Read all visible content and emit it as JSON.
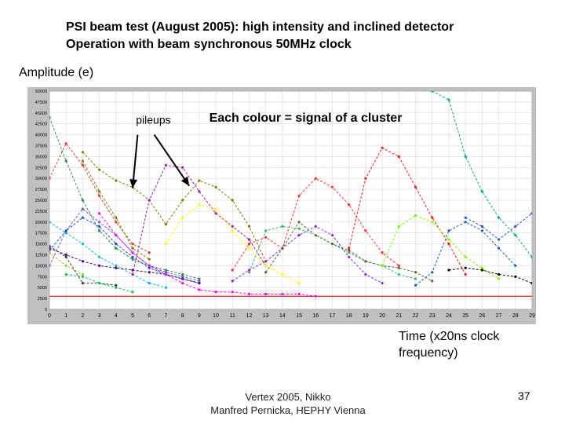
{
  "slide": {
    "title_line1": "PSI beam test (August 2005): high intensity and inclined detector",
    "title_line2": "Operation with beam synchronous 50MHz clock",
    "footer_line1": "Vertex 2005, Nikko",
    "footer_line2": "Manfred Pernicka, HEPHY Vienna",
    "page_number": "37"
  },
  "chart_data": {
    "type": "line",
    "title": "",
    "ylabel": "Amplitude (e)",
    "xlabel_line1": "Time (x20ns clock",
    "xlabel_line2": "frequency)",
    "ylim": [
      0,
      50000
    ],
    "xlim": [
      0,
      29
    ],
    "y_ticks": [
      "0",
      "2500",
      "5000",
      "7500",
      "10000",
      "12500",
      "15000",
      "17500",
      "20000",
      "22500",
      "25000",
      "27500",
      "30000",
      "32500",
      "35000",
      "37500",
      "40000",
      "42500",
      "45000",
      "47500",
      "50000"
    ],
    "x_ticks": [
      "0",
      "1",
      "2",
      "3",
      "4",
      "5",
      "6",
      "7",
      "8",
      "9",
      "10",
      "11",
      "12",
      "13",
      "14",
      "15",
      "16",
      "17",
      "18",
      "19",
      "20",
      "21",
      "22",
      "23",
      "24",
      "25",
      "26",
      "27",
      "28",
      "29"
    ],
    "grid": true,
    "background_color": "#c0c0c0",
    "plot_area_color": "#ffffff",
    "baseline": {
      "y": 3000,
      "color": "#ff0000"
    },
    "annotations": [
      {
        "text": "pileups",
        "x": 5.2,
        "y": 42500,
        "bold": false,
        "size": 14
      },
      {
        "text": "Each colour = signal of a cluster",
        "x": 9.6,
        "y": 43000,
        "bold": true,
        "size": 16
      }
    ],
    "arrows": [
      {
        "from": [
          5.3,
          40000
        ],
        "to": [
          5.0,
          27800
        ]
      },
      {
        "from": [
          6.3,
          40000
        ],
        "to": [
          8.4,
          28300
        ]
      }
    ],
    "series": [
      {
        "color": "#d94040",
        "x": [
          0,
          1,
          2,
          3,
          4,
          5,
          6
        ],
        "y": [
          30000,
          38000,
          33000,
          26000,
          20000,
          15000,
          13000
        ]
      },
      {
        "color": "#2e8b57",
        "x": [
          0,
          1,
          2,
          3,
          4,
          5,
          6,
          7,
          8,
          9
        ],
        "y": [
          44000,
          34000,
          25000,
          18000,
          14000,
          11500,
          10000,
          9000,
          8000,
          7000
        ]
      },
      {
        "color": "#6a5acd",
        "x": [
          0,
          1,
          2,
          3,
          4,
          5,
          6,
          7,
          8,
          9
        ],
        "y": [
          10000,
          18000,
          23000,
          20000,
          17000,
          13000,
          10000,
          8500,
          7500,
          6500
        ]
      },
      {
        "color": "#00bcd4",
        "x": [
          0,
          1,
          2,
          3,
          4,
          5,
          6,
          7
        ],
        "y": [
          20000,
          17500,
          15000,
          12000,
          10000,
          8000,
          6000,
          5000
        ]
      },
      {
        "color": "#1e50c8",
        "x": [
          0,
          1,
          2,
          3,
          4,
          5,
          6,
          7,
          8,
          9
        ],
        "y": [
          13500,
          18000,
          21000,
          19000,
          15000,
          12000,
          9500,
          8000,
          7000,
          6000
        ]
      },
      {
        "color": "#4b0082",
        "x": [
          0,
          1,
          2,
          3,
          4,
          5,
          6,
          7,
          8,
          9
        ],
        "y": [
          14000,
          12500,
          11000,
          10000,
          9500,
          9000,
          8500,
          8000,
          7000,
          6000
        ]
      },
      {
        "color": "#9acd32",
        "x": [
          0,
          1,
          2
        ],
        "y": [
          13000,
          10000,
          8000
        ]
      },
      {
        "color": "#404040",
        "x": [
          0,
          1,
          2,
          3,
          4
        ],
        "y": [
          14500,
          12000,
          6000,
          6000,
          5500
        ]
      },
      {
        "color": "#00c853",
        "x": [
          1,
          2,
          3,
          4,
          5
        ],
        "y": [
          8000,
          7500,
          6000,
          5000,
          4000
        ]
      },
      {
        "color": "#808000",
        "x": [
          2,
          3,
          4,
          5,
          6,
          7,
          8,
          9,
          10,
          11,
          12,
          13
        ],
        "y": [
          36000,
          32000,
          29500,
          28000,
          25000,
          19500,
          25000,
          29500,
          28000,
          25000,
          19000,
          11000
        ]
      },
      {
        "color": "#a020a0",
        "x": [
          5,
          6,
          7,
          8,
          9,
          10,
          11,
          12,
          13
        ],
        "y": [
          8000,
          25000,
          33000,
          32500,
          27000,
          22000,
          19000,
          16000,
          10000
        ]
      },
      {
        "color": "#808000",
        "x": [
          2,
          3,
          4,
          5,
          6
        ],
        "y": [
          34000,
          27000,
          21000,
          14000,
          11500
        ]
      },
      {
        "color": "#ffff00",
        "x": [
          7,
          8,
          9,
          10,
          11,
          12,
          13,
          14,
          15
        ],
        "y": [
          15000,
          21000,
          24000,
          23000,
          18000,
          14000,
          10000,
          8000,
          6000
        ]
      },
      {
        "color": "#ff00ff",
        "x": [
          3,
          4,
          5,
          6,
          7,
          8,
          9,
          10,
          11,
          12,
          13,
          14,
          15,
          16
        ],
        "y": [
          22000,
          17000,
          13000,
          10000,
          8000,
          6000,
          4500,
          4000,
          4000,
          3500,
          3500,
          3500,
          3500,
          3000
        ]
      },
      {
        "color": "#ff3333",
        "x": [
          11,
          12,
          13,
          14,
          15,
          16,
          17,
          18,
          19,
          20,
          21
        ],
        "y": [
          9000,
          15000,
          16500,
          14000,
          26000,
          30000,
          28000,
          24000,
          18000,
          13000,
          10000
        ]
      },
      {
        "color": "#3cb371",
        "x": [
          12,
          13,
          14,
          15,
          16,
          17,
          18,
          19,
          20,
          21,
          22
        ],
        "y": [
          8500,
          18000,
          19000,
          18500,
          17000,
          15000,
          13000,
          11000,
          10000,
          8000,
          7000
        ]
      },
      {
        "color": "#8a2be2",
        "x": [
          11,
          12,
          13,
          14,
          15,
          16,
          17,
          18,
          19,
          20
        ],
        "y": [
          6500,
          9000,
          11000,
          14000,
          17000,
          19000,
          17000,
          12000,
          8000,
          6000
        ]
      },
      {
        "color": "#556b2f",
        "x": [
          13,
          14,
          15,
          16,
          17,
          18,
          19,
          20,
          21,
          22,
          23
        ],
        "y": [
          8500,
          14000,
          20000,
          17000,
          15000,
          13500,
          11000,
          10000,
          9500,
          8500,
          6500
        ]
      },
      {
        "color": "#ffffff",
        "x": [
          15,
          16,
          17,
          18,
          19,
          20
        ],
        "y": [
          14000,
          17500,
          20000,
          18000,
          15000,
          12000
        ]
      },
      {
        "color": "#ff1a1a",
        "x": [
          18,
          19,
          20,
          21,
          22,
          23,
          24,
          25
        ],
        "y": [
          14000,
          30000,
          37000,
          35000,
          28000,
          21000,
          15000,
          8000
        ]
      },
      {
        "color": "#7cfc00",
        "x": [
          20,
          21,
          22,
          23,
          24,
          25,
          26,
          27
        ],
        "y": [
          10000,
          19000,
          21500,
          20000,
          16000,
          12000,
          9500,
          7000
        ]
      },
      {
        "color": "#1a5fb4",
        "x": [
          22,
          23,
          24,
          25,
          26,
          27,
          28
        ],
        "y": [
          5500,
          8500,
          18000,
          20000,
          18000,
          14000,
          10000
        ]
      },
      {
        "color": "#00aa88",
        "x": [
          23,
          24,
          25,
          26,
          27,
          28,
          29
        ],
        "y": [
          50000,
          48000,
          35000,
          27000,
          21000,
          17000,
          12000
        ]
      },
      {
        "color": "#000000",
        "x": [
          24,
          25,
          26,
          27,
          28,
          29
        ],
        "y": [
          9000,
          9500,
          9000,
          8000,
          7500,
          6000
        ]
      },
      {
        "color": "#2f4fcf",
        "x": [
          25,
          26,
          27,
          28,
          29
        ],
        "y": [
          21000,
          19000,
          16000,
          19000,
          22000
        ]
      }
    ]
  }
}
